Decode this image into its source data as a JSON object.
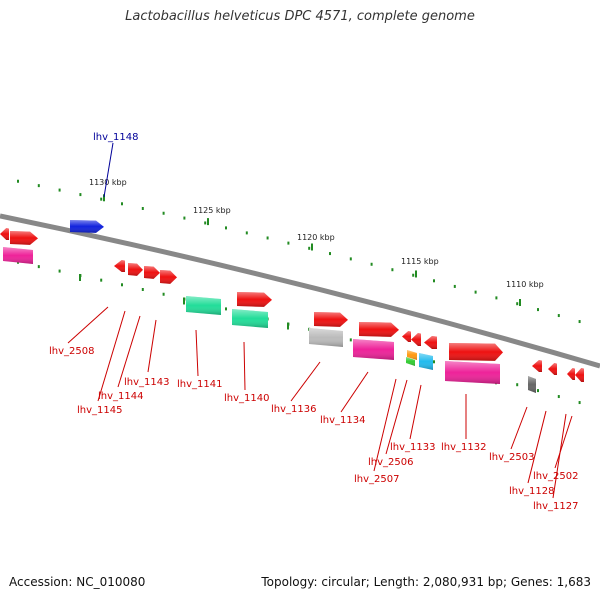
{
  "title": "Lactobacillus helveticus DPC 4571, complete genome",
  "footer": {
    "accession": "Accession: NC_010080",
    "summary": "Topology: circular; Length: 2,080,931 bp; Genes: 1,683"
  },
  "colors": {
    "backbone": "#888888",
    "tick": "#228b22",
    "label_red": "#cc0000",
    "label_blue": "#000099",
    "red": "#ee1111",
    "blue": "#1122dd",
    "magenta": "#ee2299",
    "green": "#22dd99",
    "gray": "#bbbbbb",
    "cyan": "#22bbee",
    "orange": "#ff9911",
    "lime": "#33cc33",
    "dark": "#666666"
  },
  "scale": {
    "kbp_labels": [
      "1130 kbp",
      "1125 kbp",
      "1120 kbp",
      "1115 kbp",
      "1110 kbp"
    ]
  },
  "gene_labels": [
    {
      "text": "lhv_1148",
      "color": "blue"
    },
    {
      "text": "lhv_2508",
      "color": "red"
    },
    {
      "text": "lhv_1143",
      "color": "red"
    },
    {
      "text": "lhv_1144",
      "color": "red"
    },
    {
      "text": "lhv_1145",
      "color": "red"
    },
    {
      "text": "lhv_1141",
      "color": "red"
    },
    {
      "text": "lhv_1140",
      "color": "red"
    },
    {
      "text": "lhv_1136",
      "color": "red"
    },
    {
      "text": "lhv_1134",
      "color": "red"
    },
    {
      "text": "lhv_1133",
      "color": "red"
    },
    {
      "text": "lhv_2506",
      "color": "red"
    },
    {
      "text": "lhv_2507",
      "color": "red"
    },
    {
      "text": "lhv_1132",
      "color": "red"
    },
    {
      "text": "lhv_2503",
      "color": "red"
    },
    {
      "text": "lhv_2502",
      "color": "red"
    },
    {
      "text": "lhv_1128",
      "color": "red"
    },
    {
      "text": "lhv_1127",
      "color": "red"
    }
  ]
}
